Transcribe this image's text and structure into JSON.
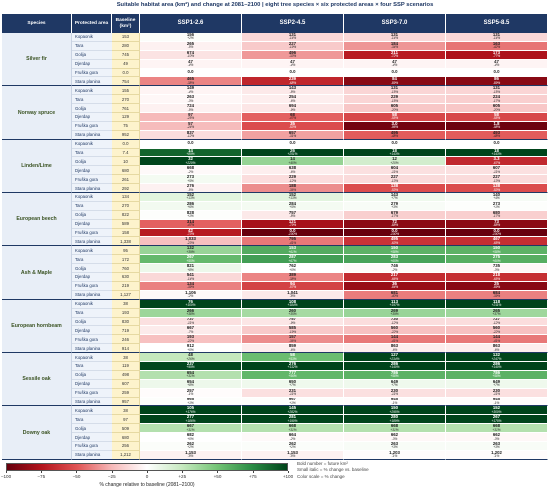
{
  "colors": {
    "title": "#1f3864",
    "header_bg": "#1f3864",
    "species_text": "#3b5323",
    "species_bg": "#e8eef7",
    "area_text": "#1f3864",
    "area_bg": "#eef3fa",
    "baseline_bg": "#fdf3cc",
    "scale": [
      [
        -100,
        "#67000d"
      ],
      [
        -75,
        "#b3141c"
      ],
      [
        -50,
        "#e05454"
      ],
      [
        -25,
        "#f6b9b9"
      ],
      [
        0,
        "#ffffff"
      ],
      [
        25,
        "#c7e9c0"
      ],
      [
        50,
        "#74c476"
      ],
      [
        75,
        "#2b8c45"
      ],
      [
        100,
        "#00441b"
      ]
    ]
  },
  "chart_data": {
    "type": "heatmap",
    "title": "Suitable habitat area (km²) and change at 2081–2100 | eight tree species × six protected areas × four SSP scenarios",
    "columns": [
      "Species",
      "Protected area",
      "Baseline (km²)",
      "SSP1-2.6",
      "SSP2-4.5",
      "SSP3-7.0",
      "SSP5-8.5"
    ],
    "groups": [
      {
        "species": "Silver fir",
        "rows": [
          {
            "area": "Kopaonik",
            "baseline": "153",
            "km2": [
              "156",
              "131",
              "131",
              "131"
            ],
            "pct": [
              "+2%",
              "-14%",
              "-14%",
              "-14%"
            ]
          },
          {
            "area": "Tara",
            "baseline": "280",
            "km2": [
              "265",
              "227",
              "184",
              "163"
            ],
            "pct": [
              "-5%",
              "-19%",
              "-34%",
              "-42%"
            ]
          },
          {
            "area": "Golija",
            "baseline": "745",
            "km2": [
              "674",
              "496",
              "211",
              "173"
            ],
            "pct": [
              "-10%",
              "-33%",
              "-72%",
              "-77%"
            ]
          },
          {
            "area": "Djerdap",
            "baseline": "49",
            "km2": [
              "47",
              "47",
              "47",
              "47"
            ],
            "pct": [
              "-4%",
              "-4%",
              "-4%",
              "-4%"
            ]
          },
          {
            "area": "Fruška gora",
            "baseline": "0.0",
            "km2": [
              "0.0",
              "0.0",
              "0.0",
              "0.0"
            ],
            "pct": [
              "",
              "",
              "",
              ""
            ]
          },
          {
            "area": "Stara planina",
            "baseline": "754",
            "km2": [
              "465",
              "239",
              "84",
              "86"
            ],
            "pct": [
              "-38%",
              "-68%",
              "-89%",
              "-89%"
            ]
          }
        ]
      },
      {
        "species": "Norway spruce",
        "rows": [
          {
            "area": "Kopaonik",
            "baseline": "155",
            "km2": [
              "149",
              "143",
              "131",
              "131"
            ],
            "pct": [
              "-4%",
              "-8%",
              "-15%",
              "-15%"
            ]
          },
          {
            "area": "Tara",
            "baseline": "270",
            "km2": [
              "263",
              "254",
              "229",
              "224"
            ],
            "pct": [
              "-3%",
              "-6%",
              "-15%",
              "-17%"
            ]
          },
          {
            "area": "Golija",
            "baseline": "761",
            "km2": [
              "724",
              "694",
              "605",
              "605"
            ],
            "pct": [
              "-5%",
              "-9%",
              "-20%",
              "-20%"
            ]
          },
          {
            "area": "Djerdap",
            "baseline": "129",
            "km2": [
              "97",
              "68",
              "58",
              "58"
            ],
            "pct": [
              "-25%",
              "-47%",
              "-55%",
              "-55%"
            ]
          },
          {
            "area": "Fruška gora",
            "baseline": "75",
            "km2": [
              "57",
              "35",
              "3.0",
              "1.8"
            ],
            "pct": [
              "-24%",
              "-53%",
              "-96%",
              "-98%"
            ]
          },
          {
            "area": "Stara planina",
            "baseline": "952",
            "km2": [
              "837",
              "657",
              "495",
              "493"
            ],
            "pct": [
              "-12%",
              "-31%",
              "-48%",
              "-48%"
            ]
          }
        ]
      },
      {
        "species": "Linden/Lime",
        "rows": [
          {
            "area": "Kopaonik",
            "baseline": "0.0",
            "km2": [
              "0.0",
              "0.0",
              "0.0",
              "0.0"
            ],
            "pct": [
              "",
              "",
              "",
              ""
            ]
          },
          {
            "area": "Tara",
            "baseline": "7.4",
            "km2": [
              "14",
              "26",
              "18",
              "18"
            ],
            "pct": [
              "+89%",
              "+251%",
              "+143%",
              "+143%"
            ]
          },
          {
            "area": "Golija",
            "baseline": "10",
            "km2": [
              "32",
              "14",
              "12",
              "3.3"
            ],
            "pct": [
              "+220%",
              "+40%",
              "+20%",
              "-67%"
            ]
          },
          {
            "area": "Djerdap",
            "baseline": "680",
            "km2": [
              "668",
              "638",
              "604",
              "607"
            ],
            "pct": [
              "-2%",
              "-6%",
              "-11%",
              "-11%"
            ]
          },
          {
            "area": "Fruška gora",
            "baseline": "261",
            "km2": [
              "273",
              "229",
              "227",
              "227"
            ],
            "pct": [
              "+5%",
              "-12%",
              "-13%",
              "-13%"
            ]
          },
          {
            "area": "Stara planina",
            "baseline": "292",
            "km2": [
              "276",
              "188",
              "138",
              "138"
            ],
            "pct": [
              "-5%",
              "-36%",
              "-53%",
              "-53%"
            ]
          }
        ]
      },
      {
        "species": "European beech",
        "rows": [
          {
            "area": "Kopaonik",
            "baseline": "134",
            "km2": [
              "152",
              "152",
              "143",
              "140"
            ],
            "pct": [
              "+13%",
              "+13%",
              "+7%",
              "+4%"
            ]
          },
          {
            "area": "Tara",
            "baseline": "270",
            "km2": [
              "286",
              "284",
              "279",
              "273"
            ],
            "pct": [
              "+6%",
              "+5%",
              "+3%",
              "+1%"
            ]
          },
          {
            "area": "Golija",
            "baseline": "822",
            "km2": [
              "828",
              "757",
              "679",
              "680"
            ],
            "pct": [
              "+1%",
              "-8%",
              "-17%",
              "-17%"
            ]
          },
          {
            "area": "Djerdap",
            "baseline": "589",
            "km2": [
              "314",
              "121",
              "72",
              "73"
            ],
            "pct": [
              "-47%",
              "-79%",
              "-88%",
              "-88%"
            ]
          },
          {
            "area": "Fruška gora",
            "baseline": "158",
            "km2": [
              "42",
              "0.0",
              "0.0",
              "0.0"
            ],
            "pct": [
              "-73%",
              "-100%",
              "-100%",
              "-100%"
            ]
          },
          {
            "area": "Stara planina",
            "baseline": "1,338",
            "km2": [
              "1,033",
              "795",
              "495",
              "467"
            ],
            "pct": [
              "-23%",
              "-41%",
              "-63%",
              "-65%"
            ]
          }
        ]
      },
      {
        "species": "Ash & Maple",
        "rows": [
          {
            "area": "Kopaonik",
            "baseline": "95",
            "km2": [
              "132",
              "153",
              "150",
              "150"
            ],
            "pct": [
              "+39%",
              "+61%",
              "+58%",
              "+58%"
            ]
          },
          {
            "area": "Tara",
            "baseline": "172",
            "km2": [
              "267",
              "287",
              "283",
              "275"
            ],
            "pct": [
              "+55%",
              "+67%",
              "+65%",
              "+60%"
            ]
          },
          {
            "area": "Golija",
            "baseline": "760",
            "km2": [
              "821",
              "762",
              "746",
              "735"
            ],
            "pct": [
              "+8%",
              "+0%",
              "-2%",
              "-3%"
            ]
          },
          {
            "area": "Djerdap",
            "baseline": "630",
            "km2": [
              "541",
              "389",
              "217",
              "218"
            ],
            "pct": [
              "-14%",
              "-38%",
              "-66%",
              "-65%"
            ]
          },
          {
            "area": "Fruška gora",
            "baseline": "219",
            "km2": [
              "134",
              "94",
              "36",
              "25"
            ],
            "pct": [
              "-39%",
              "-57%",
              "-84%",
              "-89%"
            ]
          },
          {
            "area": "Stara planina",
            "baseline": "1,127",
            "km2": [
              "1,106",
              "1,041",
              "681",
              "684"
            ],
            "pct": [
              "-2%",
              "-8%",
              "-40%",
              "-39%"
            ]
          }
        ]
      },
      {
        "species": "European hornbeam",
        "rows": [
          {
            "area": "Kopaonik",
            "baseline": "38",
            "km2": [
              "76",
              "108",
              "113",
              "118"
            ],
            "pct": [
              "+100%",
              "+184%",
              "+197%",
              "+211%"
            ]
          },
          {
            "area": "Tara",
            "baseline": "193",
            "km2": [
              "266",
              "260",
              "269",
              "265"
            ],
            "pct": [
              "+38%",
              "+35%",
              "+39%",
              "+37%"
            ]
          },
          {
            "area": "Golija",
            "baseline": "830",
            "km2": [
              "737",
              "757",
              "730",
              "727"
            ],
            "pct": [
              "-11%",
              "-9%",
              "-12%",
              "-12%"
            ]
          },
          {
            "area": "Djerdap",
            "baseline": "719",
            "km2": [
              "667",
              "585",
              "560",
              "560"
            ],
            "pct": [
              "-7%",
              "-19%",
              "-22%",
              "-22%"
            ]
          },
          {
            "area": "Fruška gora",
            "baseline": "246",
            "km2": [
              "193",
              "157",
              "144",
              "144"
            ],
            "pct": [
              "-22%",
              "-36%",
              "-41%",
              "-41%"
            ]
          },
          {
            "area": "Stara planina",
            "baseline": "914",
            "km2": [
              "912",
              "859",
              "863",
              "863"
            ],
            "pct": [
              "+0%",
              "-6%",
              "-6%",
              "-6%"
            ]
          }
        ]
      },
      {
        "species": "Sessile oak",
        "rows": [
          {
            "area": "Kopaonik",
            "baseline": "38",
            "km2": [
              "48",
              "58",
              "127",
              "132"
            ],
            "pct": [
              "+26%",
              "+53%",
              "+234%",
              "+247%"
            ]
          },
          {
            "area": "Tara",
            "baseline": "119",
            "km2": [
              "237",
              "276",
              "286",
              "286"
            ],
            "pct": [
              "+99%",
              "+132%",
              "+140%",
              "+140%"
            ]
          },
          {
            "area": "Golija",
            "baseline": "498",
            "km2": [
              "654",
              "777",
              "786",
              "786"
            ],
            "pct": [
              "+31%",
              "+56%",
              "+58%",
              "+58%"
            ]
          },
          {
            "area": "Djerdap",
            "baseline": "607",
            "km2": [
              "654",
              "650",
              "649",
              "649"
            ],
            "pct": [
              "+8%",
              "+7%",
              "+7%",
              "+7%"
            ]
          },
          {
            "area": "Fruška gora",
            "baseline": "259",
            "km2": [
              "257",
              "231",
              "230",
              "230"
            ],
            "pct": [
              "-1%",
              "-11%",
              "-11%",
              "-11%"
            ]
          },
          {
            "area": "Stara planina",
            "baseline": "957",
            "km2": [
              "965",
              "967",
              "945",
              "945"
            ],
            "pct": [
              "+1%",
              "+1%",
              "-1%",
              "-1%"
            ]
          }
        ]
      },
      {
        "species": "Downy oak",
        "rows": [
          {
            "area": "Kopaonik",
            "baseline": "38",
            "km2": [
              "105",
              "145",
              "150",
              "152"
            ],
            "pct": [
              "+176%",
              "+282%",
              "+295%",
              "+300%"
            ]
          },
          {
            "area": "Tara",
            "baseline": "97",
            "km2": [
              "277",
              "281",
              "280",
              "267"
            ],
            "pct": [
              "+186%",
              "+190%",
              "+189%",
              "+175%"
            ]
          },
          {
            "area": "Golija",
            "baseline": "509",
            "km2": [
              "667",
              "668",
              "668",
              "668"
            ],
            "pct": [
              "+31%",
              "+31%",
              "+31%",
              "+31%"
            ]
          },
          {
            "area": "Djerdap",
            "baseline": "680",
            "km2": [
              "682",
              "664",
              "662",
              "662"
            ],
            "pct": [
              "+0%",
              "-2%",
              "-3%",
              "-3%"
            ]
          },
          {
            "area": "Fruška gora",
            "baseline": "256",
            "km2": [
              "262",
              "262",
              "263",
              "263"
            ],
            "pct": [
              "+2%",
              "+2%",
              "+3%",
              "+3%"
            ]
          },
          {
            "area": "Stara planina",
            "baseline": "1,212",
            "km2": [
              "1,153",
              "1,153",
              "1,203",
              "1,202"
            ],
            "pct": [
              "-5%",
              "-5%",
              "-1%",
              "-1%"
            ]
          }
        ]
      }
    ],
    "colorbar": {
      "range": [
        -100,
        100
      ],
      "ticks": [
        "−100",
        "−75",
        "−50",
        "−25",
        "0",
        "+25",
        "+50",
        "+75",
        "+100"
      ],
      "label": "% change relative to baseline (2081–2100)"
    },
    "notes": [
      "Bold number = future km²",
      "Small italic = % change vs. baseline",
      "Color scale = % change"
    ]
  }
}
